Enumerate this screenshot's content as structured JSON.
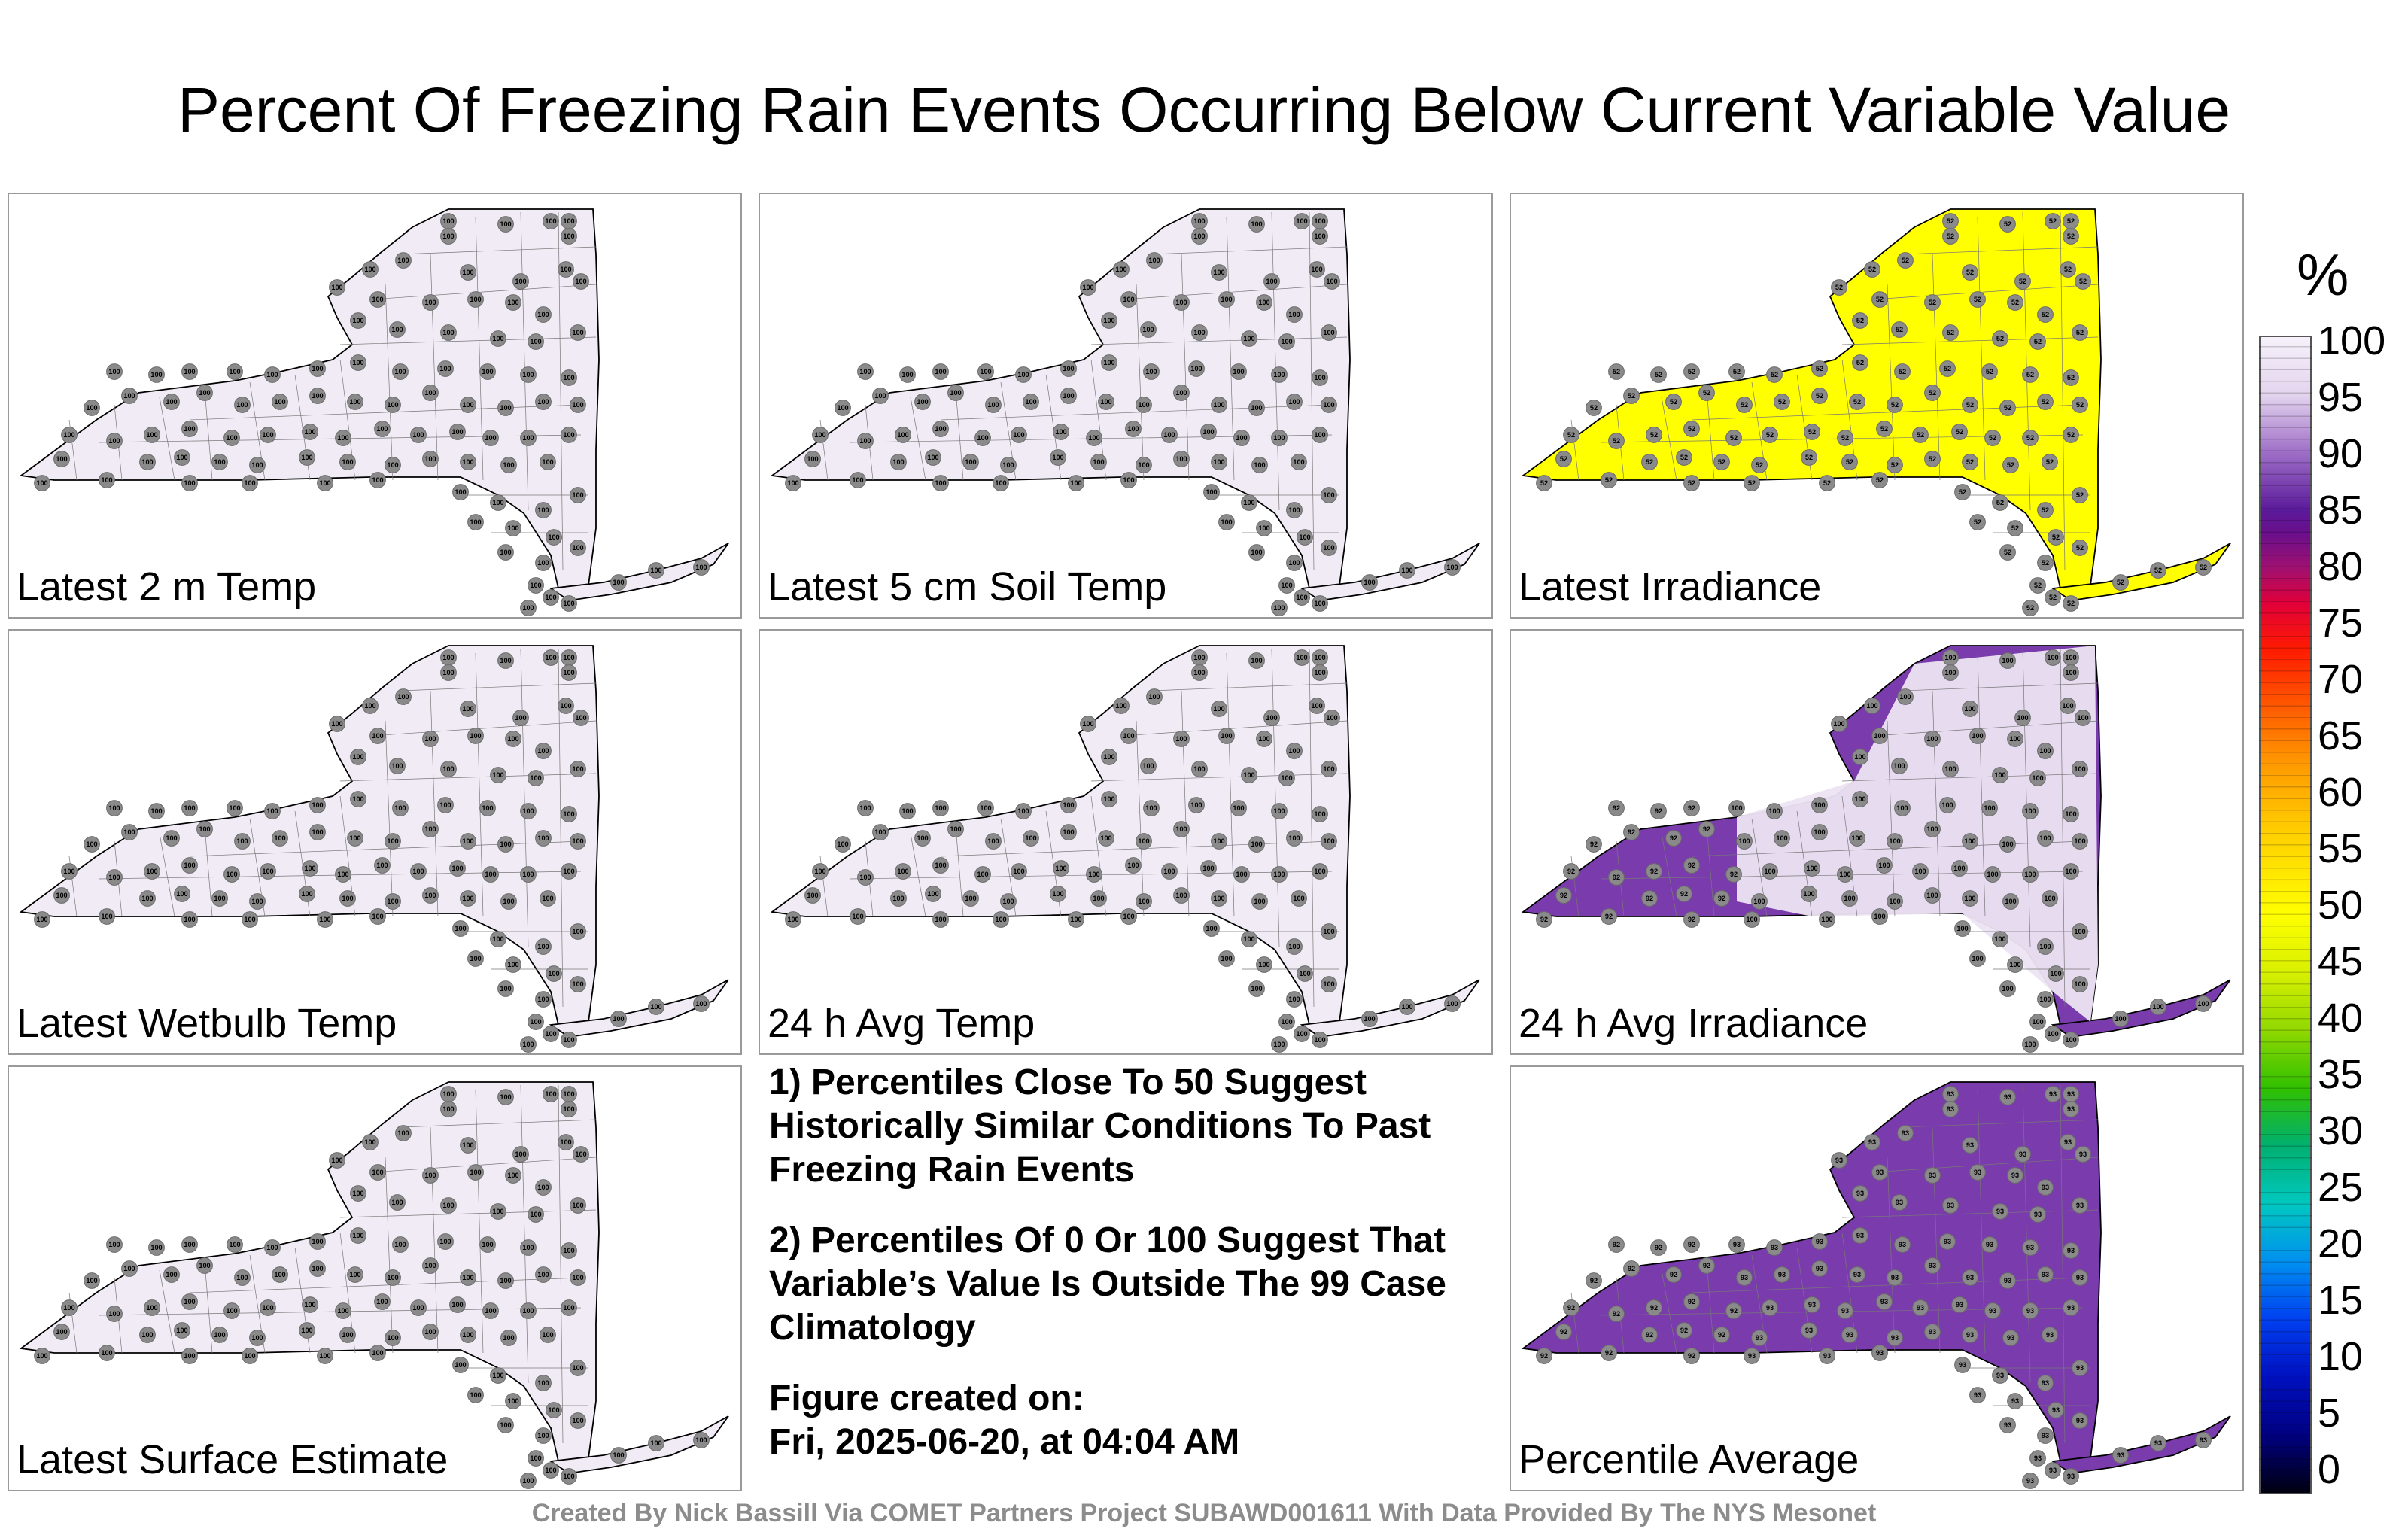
{
  "title": "Percent Of Freezing Rain Events Occurring Below Current Variable Value",
  "panels": [
    {
      "label": "Latest 2 m Temp",
      "fill": "#f1ebf6",
      "value": "100"
    },
    {
      "label": "Latest 5 cm Soil Temp",
      "fill": "#f1ebf6",
      "value": "100"
    },
    {
      "label": "Latest Irradiance",
      "fill": "#ffff00",
      "value": "52"
    },
    {
      "label": "Latest Wetbulb Temp",
      "fill": "#f1ebf6",
      "value": "100"
    },
    {
      "label": "24 h Avg Temp",
      "fill": "#f1ebf6",
      "value": "100"
    },
    {
      "label": "24 h Avg Irradiance",
      "fill": "#7a3cac",
      "fill_light": "#ede4f3",
      "value": "100",
      "value_low": "92"
    },
    {
      "label": "Latest Surface Estimate",
      "fill": "#f1ebf6",
      "value": "100"
    },
    {
      "label": "Percentile Average",
      "fill": "#7a3cac",
      "value": "93",
      "value_low": "92"
    }
  ],
  "notes": {
    "p1": "1) Percentiles Close To 50 Suggest Historically Similar Conditions To Past Freezing Rain Events",
    "p2": "2) Percentiles Of 0 Or 100 Suggest That Variable’s Value Is Outside The 99 Case Climatology",
    "fig_label": "Figure created on:",
    "fig_date": "Fri, 2025-06-20, at 04:04 AM"
  },
  "colorbar": {
    "unit": "%",
    "ticks": [
      "100",
      "95",
      "90",
      "85",
      "80",
      "75",
      "70",
      "65",
      "60",
      "55",
      "50",
      "45",
      "40",
      "35",
      "30",
      "25",
      "20",
      "15",
      "10",
      "5",
      "0"
    ]
  },
  "footer": "Created By Nick Bassill Via COMET Partners Project SUBAWD001611 With Data Provided By The NYS Mesonet"
}
